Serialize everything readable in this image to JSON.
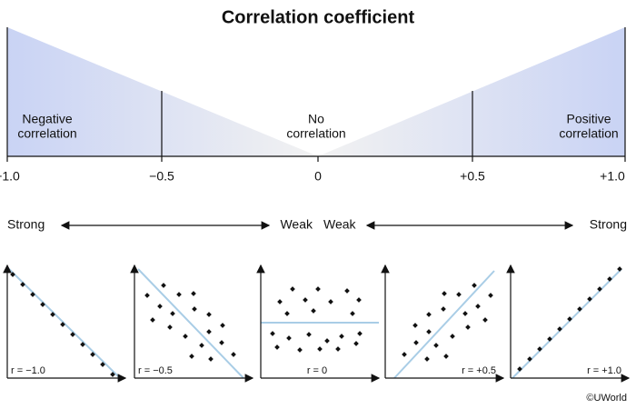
{
  "title": "Correlation coefficient",
  "regions": [
    [
      "Negative",
      "correlation"
    ],
    [
      "No",
      "correlation"
    ],
    [
      "Positive",
      "correlation"
    ]
  ],
  "ticks": [
    "−1.0",
    "−0.5",
    "0",
    "+0.5",
    "+1.0"
  ],
  "strength": [
    "Strong",
    "Weak",
    "Weak",
    "Strong"
  ],
  "panels": [
    {
      "label": "r = −1.0"
    },
    {
      "label": "r = −0.5"
    },
    {
      "label": "r = 0"
    },
    {
      "label": "r = +0.5"
    },
    {
      "label": "r = +1.0"
    }
  ],
  "credit": "©UWorld"
}
